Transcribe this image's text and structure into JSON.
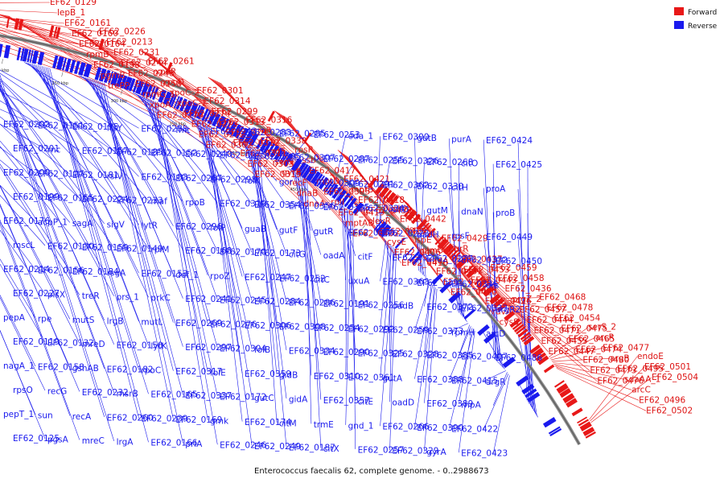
{
  "caption": "Enterococcus faecalis 62, complete genome. - 0..2988673",
  "legend": {
    "forward": "Forward",
    "reverse": "Reverse"
  },
  "colors": {
    "forward": "#e81818",
    "reverse": "#1a1aee",
    "backbone": "#888888"
  },
  "scale_ticks": [
    "150 kbp",
    "200 kbp",
    "250 kbp",
    "300 kbp",
    "350 kbp",
    "400 kbp",
    "450 kbp",
    "500 kbp"
  ],
  "forward_labels": [
    "EF62_0129",
    "lepB_1",
    "EF62_0161",
    "EF62_0160",
    "EF62_0164",
    "rpmB",
    "EF62_0198",
    "pgmB",
    "trePP",
    "EF62_0226",
    "EF62_0213",
    "EF62_0231",
    "EF62_0244",
    "EF62_0248",
    "EF62_0258",
    "rpmG_1",
    "xpoA",
    "EF62_0270",
    "EF62_0261",
    "xpoR",
    "xpoD",
    "xpoC-2",
    "xpoC-1",
    "EF62_0274",
    "EF62_0273",
    "EF62_0272",
    "EF62_0302",
    "EF62_0301",
    "EF62_0314",
    "EF62_0299",
    "EF62_0313",
    "EF62_0293",
    "EF62_0312",
    "EF62_0311",
    "EF62_0303",
    "EF62_0315",
    "EF62_0316",
    "croR",
    "EF62_0338",
    "croS",
    "serS",
    "gyrB",
    "recF",
    "dnaB",
    "dnaA",
    "rpsR",
    "ssb",
    "EF62_0417",
    "mptD",
    "EF62_0395",
    "rplI",
    "EF62_0419",
    "mptAB",
    "EF62_0402",
    "EF62_0421",
    "mptB",
    "EF62_0418",
    "EF62_0438",
    "levR",
    "EF62_0413",
    "cysE",
    "EF62_0406",
    "EF62_0416",
    "gltX",
    "EF62_0442",
    "ispF",
    "ispE",
    "glmU",
    "radA",
    "EF62_0431",
    "EF62_0414",
    "EF62_0420",
    "EF62_0429",
    "purR",
    "EF62_0437",
    "EF62_0453",
    "EF62_0443",
    "ruvB",
    "EF62_0426",
    "ruvA",
    "cysS",
    "EF62_0459",
    "EF62_0458",
    "EF62_0436",
    "prgZ_2",
    "EF62_0457",
    "EF62_0444",
    "EF62_0471",
    "EF62_0455",
    "EF62_0447",
    "EF62_0468",
    "EF62_0478",
    "EF62_0454",
    "EF62_0475",
    "EF62_0465",
    "EF62_0474",
    "EF62_0480",
    "EF62_0473",
    "EF62_0476",
    "serS_2",
    "arcR",
    "EF62_0477",
    "argB",
    "EF62_0495",
    "sdaAA_1",
    "arcC",
    "EF62_0496",
    "EF62_0502",
    "endoE",
    "EF62_0501",
    "EF62_0504"
  ],
  "reverse_labels": [
    "EF62_0202",
    "EF62_0201",
    "EF62_0200",
    "EF62_0199",
    "EF62_0176",
    "mscL",
    "EF62_0214",
    "EF62_0227",
    "pepA",
    "EF62_0119",
    "nagA_1",
    "rpsO",
    "pepT_1",
    "EF62_0125",
    "EF62_0151",
    "rnc",
    "EF62_0127",
    "EF62_0155",
    "acpP_1",
    "EF62_0130",
    "EF62_0156",
    "plsX",
    "rpe",
    "EF62_0132",
    "EF62_0158",
    "recG",
    "sun",
    "pgsA",
    "EF62_0135",
    "EF62_0157",
    "EF62_0181",
    "EF62_0224",
    "sagA",
    "EF62_0159",
    "EF62_0184",
    "treR",
    "mutS",
    "mreD",
    "gshAB",
    "EF62_0232",
    "recA",
    "mreC",
    "ftsY",
    "EF62_0185",
    "rsiV",
    "EF62_0233",
    "sigV",
    "EF62_0149",
    "rsgA",
    "prs_1",
    "lrgB",
    "EF62_0150",
    "EF62_0182",
    "msrB",
    "EF62_0260",
    "lrgA",
    "EF62_0288",
    "EF62_0152",
    "EF62_0183",
    "maf",
    "lytR",
    "rplM",
    "EF62_0153",
    "prkC",
    "mutL",
    "lytK",
    "rpoC",
    "EF62_0165",
    "EF62_0239",
    "EF62_0166",
    "fmt",
    "EF62_0240",
    "EF62_0267",
    "rpoB",
    "EF62_0296",
    "EF62_0168",
    "def_1",
    "EF62_0241",
    "EF62_0269",
    "EF62_0297",
    "EF62_0317",
    "EF62_0337",
    "EF62_0169",
    "priA",
    "EF62_0243",
    "EF62_0275",
    "EF62_0298",
    "EF62_0319",
    "folP",
    "EF62_0170",
    "rpoZ",
    "EF62_0245",
    "EF62_0276",
    "EF62_0304",
    "folE",
    "EF62_0172",
    "gmk",
    "EF62_0246",
    "EF62_0283",
    "EF62_0305",
    "folK",
    "EF62_0354",
    "guaB",
    "EF62_0173",
    "EF62_0247",
    "EF62_0284",
    "EF62_0306",
    "folB",
    "EF62_0359",
    "gutC",
    "EF62_0174",
    "EF62_0249",
    "EF62_0285",
    "EF62_0307",
    "gor",
    "EF62_0356",
    "gutF",
    "citG",
    "EF62_0252",
    "EF62_0286",
    "EF62_0308",
    "EF62_0334",
    "gidB",
    "gidA",
    "citM",
    "EF62_0187",
    "EF62_0253",
    "EF62_0287",
    "EF62_0309",
    "EF62_0335",
    "gutR",
    "oadA",
    "citC",
    "EF62_0191",
    "EF62_0254",
    "EF62_0290",
    "EF62_0310",
    "EF62_0357",
    "trmE",
    "citX",
    "eda_1",
    "EF62_0255",
    "EF62_0291",
    "EF62_0324",
    "EF62_0358",
    "citF",
    "uxuA",
    "EF62_0256",
    "EF62_0292",
    "EF62_0325",
    "EF62_0361",
    "citE",
    "gnd_1",
    "EF62_0257",
    "EF62_0300",
    "EF62_0326",
    "EF62_0362",
    "citD",
    "EF62_0223",
    "EF62_0327",
    "EF62_0363",
    "oadB",
    "EF62_0259",
    "EF62_0328",
    "gutA",
    "oadD",
    "EF62_0266",
    "EF62_0329",
    "gutB",
    "EF62_0268",
    "EF62_0330",
    "gutM",
    "oadH",
    "EF62_0277",
    "EF62_0331",
    "EF62_0372",
    "EF62_0373",
    "EF62_0385",
    "EF62_0388",
    "EF62_0389",
    "EF62_0390",
    "gyrA",
    "purA",
    "citO",
    "citH",
    "dnaN",
    "rpsF",
    "EF62_0332",
    "EF62_0336",
    "EF62_0333",
    "rpmH",
    "EF62_0407",
    "EF62_0415",
    "rnpA",
    "EF62_0422",
    "EF62_0423",
    "EF62_0424",
    "EF62_0425",
    "proA",
    "proB",
    "EF62_0449",
    "EF62_0450",
    "ers",
    "argR2",
    "arcD",
    "EF62_0486",
    "argR"
  ]
}
